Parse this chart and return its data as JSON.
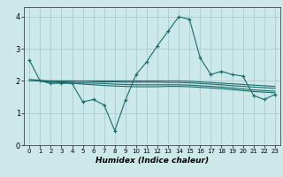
{
  "title": "",
  "xlabel": "Humidex (Indice chaleur)",
  "background_color": "#cce8e8",
  "grid_color": "#aacccc",
  "line_color": "#1a6b6b",
  "xlim": [
    -0.5,
    23.5
  ],
  "ylim": [
    0,
    4.3
  ],
  "xticks": [
    0,
    1,
    2,
    3,
    4,
    5,
    6,
    7,
    8,
    9,
    10,
    11,
    12,
    13,
    14,
    15,
    16,
    17,
    18,
    19,
    20,
    21,
    22,
    23
  ],
  "yticks": [
    0,
    1,
    2,
    3,
    4
  ],
  "main_y": [
    2.65,
    2.0,
    1.92,
    1.93,
    1.92,
    1.35,
    1.42,
    1.25,
    0.45,
    1.4,
    2.2,
    2.6,
    3.1,
    3.55,
    4.0,
    3.92,
    2.72,
    2.2,
    2.3,
    2.2,
    2.15,
    1.55,
    1.42,
    1.58
  ],
  "smooth1_y": [
    2.0,
    2.0,
    1.96,
    1.95,
    1.93,
    1.9,
    1.88,
    1.86,
    1.84,
    1.83,
    1.82,
    1.82,
    1.82,
    1.83,
    1.83,
    1.82,
    1.8,
    1.78,
    1.76,
    1.73,
    1.7,
    1.67,
    1.65,
    1.63
  ],
  "smooth2_y": [
    2.0,
    2.0,
    1.98,
    1.97,
    1.96,
    1.94,
    1.93,
    1.92,
    1.9,
    1.89,
    1.88,
    1.88,
    1.88,
    1.88,
    1.88,
    1.87,
    1.85,
    1.83,
    1.81,
    1.78,
    1.75,
    1.72,
    1.7,
    1.68
  ],
  "smooth3_y": [
    2.0,
    2.0,
    2.0,
    2.0,
    2.0,
    1.99,
    1.98,
    1.97,
    1.97,
    1.96,
    1.96,
    1.96,
    1.96,
    1.95,
    1.95,
    1.94,
    1.92,
    1.9,
    1.88,
    1.85,
    1.83,
    1.81,
    1.79,
    1.77
  ],
  "smooth4_y": [
    2.05,
    2.02,
    2.0,
    2.0,
    2.0,
    2.0,
    2.0,
    2.0,
    2.0,
    2.0,
    2.0,
    2.0,
    2.0,
    2.0,
    2.0,
    1.99,
    1.97,
    1.95,
    1.93,
    1.91,
    1.89,
    1.87,
    1.85,
    1.83
  ],
  "figsize": [
    3.2,
    2.0
  ],
  "dpi": 100
}
